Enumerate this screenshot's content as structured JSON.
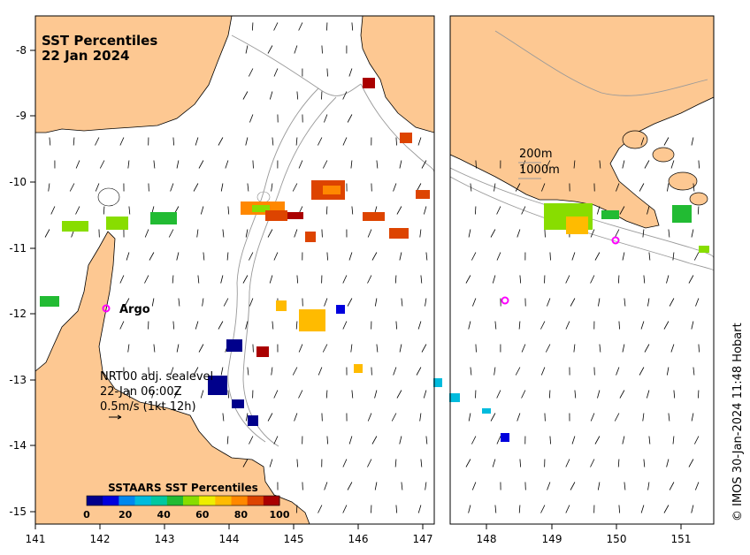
{
  "map": {
    "title_line1": "SST Percentiles",
    "title_line2": "22 Jan 2024",
    "x_ticks": [
      "141",
      "142",
      "143",
      "144",
      "145",
      "146",
      "147",
      "148",
      "149",
      "150",
      "151"
    ],
    "y_ticks": [
      "-8",
      "-9",
      "-10",
      "-11",
      "-12",
      "-13",
      "-14",
      "-15"
    ],
    "contour_legend": [
      "200m",
      "1000m"
    ],
    "argo_label": "Argo",
    "current_note": [
      "NRT00 adj. sealevel",
      "22-Jan 06:00Z",
      "0.5m/s (1kt 12h)"
    ],
    "colorbar_title": "SSTAARS SST Percentiles",
    "colorbar_ticks": [
      "0",
      "20",
      "40",
      "60",
      "80",
      "100"
    ],
    "colorbar_colors": [
      "#00008b",
      "#0000dd",
      "#0088ee",
      "#00bbdd",
      "#00c8a0",
      "#22bb33",
      "#88dd00",
      "#eeee00",
      "#ffbb00",
      "#ff8800",
      "#dd4400",
      "#aa0000"
    ],
    "credit": "© IMOS 30-Jan-2024 11:48 Hobart",
    "land_color": "#fdc892",
    "argo_color": "#ff00ff"
  }
}
